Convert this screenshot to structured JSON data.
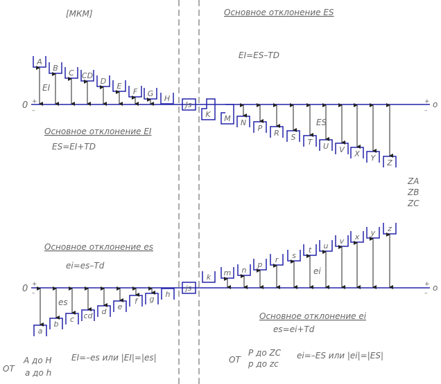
{
  "units": "[МКМ]",
  "colors": {
    "line": "#2222aa",
    "text": "#666666",
    "arrow": "#222222",
    "dash": "#555555"
  },
  "holes": {
    "heading_es": "Основное отклонение ES",
    "formula_ei": "EI=ES–TD",
    "heading_ei": "Основное отклонение EI",
    "formula_es": "ES=EI+TD",
    "ei_label": "EI",
    "es_label": "ES",
    "zero_left": "0",
    "zero_right": "o",
    "plus": "+",
    "minus": "–",
    "left_letters": [
      "A",
      "B",
      "C",
      "CD",
      "D",
      "E",
      "F",
      "G",
      "H"
    ],
    "js_label": "Js",
    "right_letters": [
      "K",
      "M",
      "N",
      "P",
      "R",
      "S",
      "T",
      "U",
      "V",
      "X",
      "Y",
      "Z"
    ],
    "extra": [
      "ZA",
      "ZB",
      "ZC"
    ]
  },
  "shafts": {
    "heading_es": "Основное отклонение es",
    "formula_ei": "ei=es–Td",
    "heading_ei": "Основное отклонение ei",
    "formula_es": "es=ei+Td",
    "es_label": "es",
    "ei_label": "ei",
    "zero_left": "0",
    "zero_right": "o",
    "left_letters": [
      "a",
      "b",
      "c",
      "cd",
      "d",
      "e",
      "f",
      "g",
      "h"
    ],
    "js_label": "js",
    "right_letters": [
      "k",
      "m",
      "n",
      "p",
      "r",
      "s",
      "t",
      "u",
      "v",
      "x",
      "y",
      "z"
    ]
  },
  "notes": {
    "ot_left": "ОТ",
    "range_upper_left": "A до H",
    "range_lower_left": "a до h",
    "rule_left": "EI=–es или |EI|=|es|",
    "ot_right": "ОТ",
    "range_upper_right": "P до ZC",
    "range_lower_right": "p до zc",
    "rule_right": "ei=–ES или |ei|=|ES|"
  }
}
